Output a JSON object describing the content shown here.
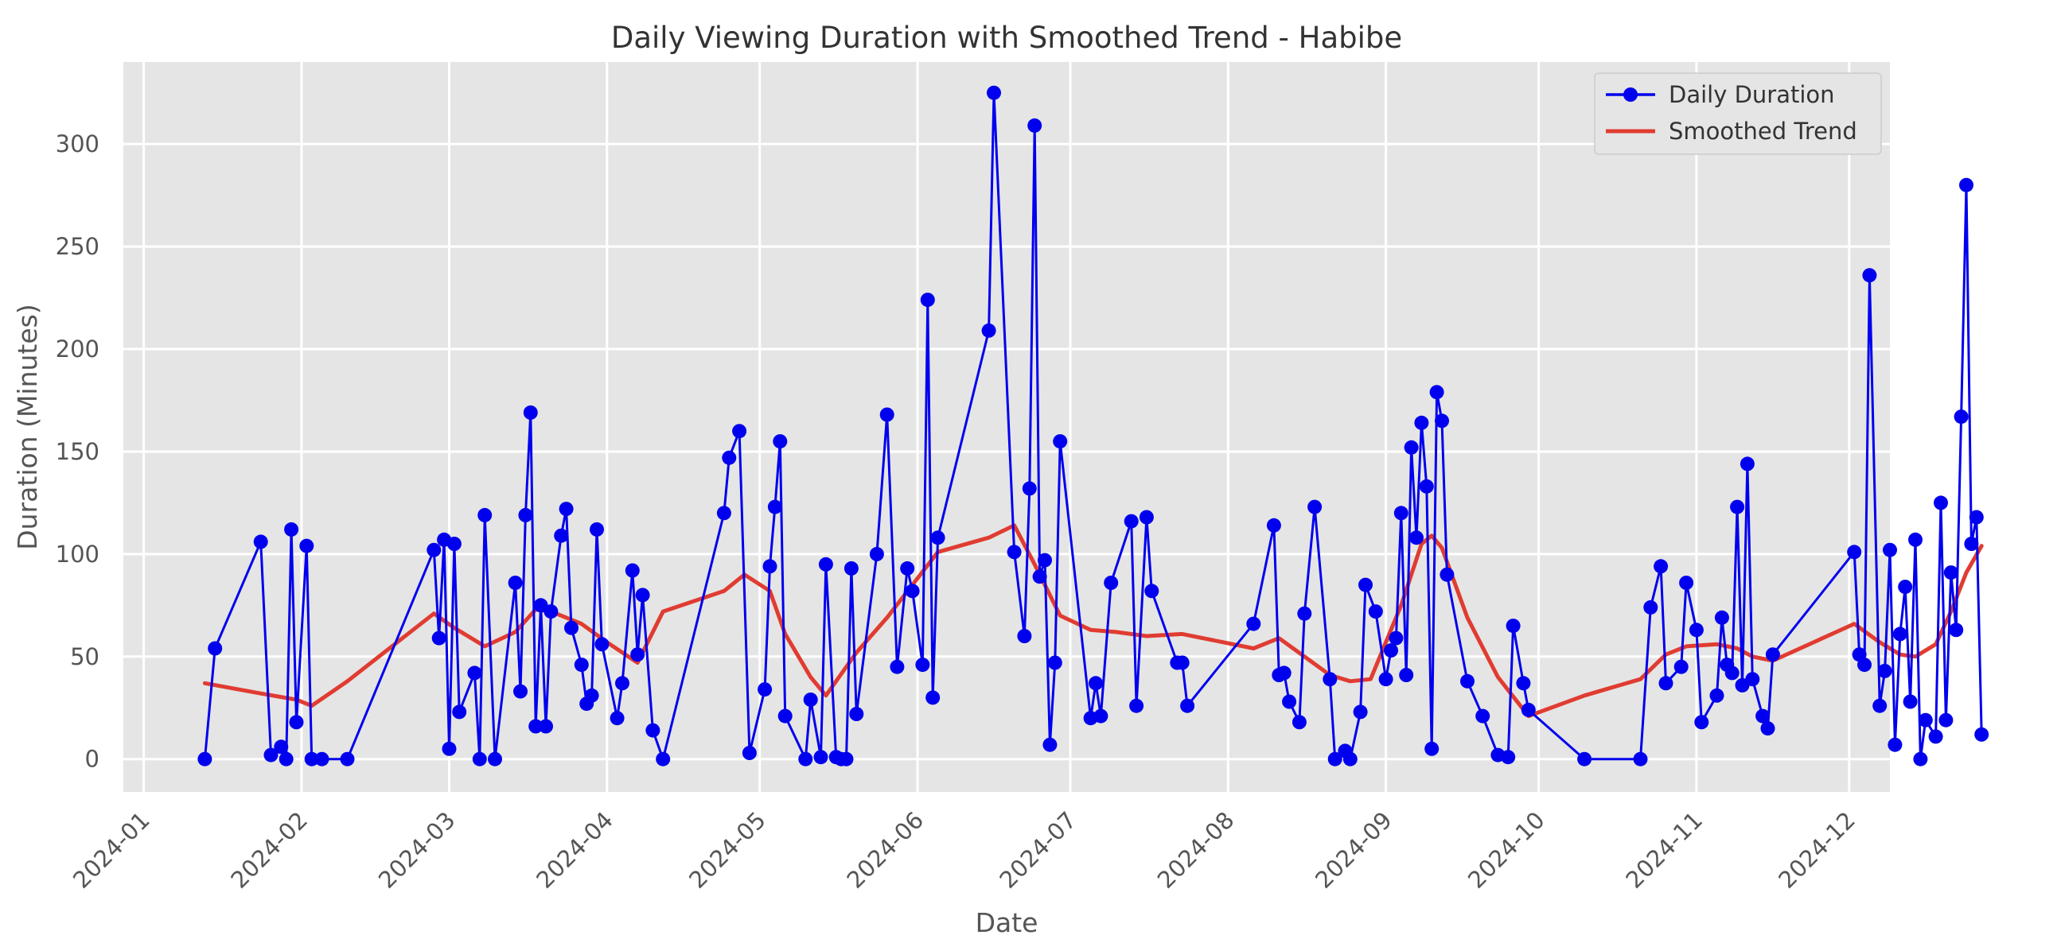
{
  "chart_data": {
    "type": "line",
    "title": "Daily Viewing Duration with Smoothed Trend - Habibe",
    "xlabel": "Date",
    "ylabel": "Duration (Minutes)",
    "x_range": [
      "2023-12-28",
      "2024-12-09"
    ],
    "ylim": [
      -16,
      340
    ],
    "grid": true,
    "legend_position": "top-right",
    "x_ticks": [
      "2024-01-01",
      "2024-02-01",
      "2024-03-01",
      "2024-04-01",
      "2024-05-01",
      "2024-06-01",
      "2024-07-01",
      "2024-08-01",
      "2024-09-01",
      "2024-10-01",
      "2024-11-01",
      "2024-12-01"
    ],
    "x_tick_labels": [
      "2024-01",
      "2024-02",
      "2024-03",
      "2024-04",
      "2024-05",
      "2024-06",
      "2024-07",
      "2024-08",
      "2024-09",
      "2024-10",
      "2024-11",
      "2024-12"
    ],
    "y_ticks": [
      0,
      50,
      100,
      150,
      200,
      250,
      300
    ],
    "y_tick_labels": [
      "0",
      "50",
      "100",
      "150",
      "200",
      "250",
      "300"
    ],
    "series": [
      {
        "name": "Daily Duration",
        "color": "#0000ee",
        "marker": "circle",
        "points": [
          [
            "2024-01-13",
            0
          ],
          [
            "2024-01-15",
            54
          ],
          [
            "2024-01-24",
            106
          ],
          [
            "2024-01-26",
            2
          ],
          [
            "2024-01-28",
            6
          ],
          [
            "2024-01-29",
            0
          ],
          [
            "2024-01-30",
            112
          ],
          [
            "2024-01-31",
            18
          ],
          [
            "2024-02-02",
            104
          ],
          [
            "2024-02-03",
            0
          ],
          [
            "2024-02-05",
            0
          ],
          [
            "2024-02-10",
            0
          ],
          [
            "2024-02-27",
            102
          ],
          [
            "2024-02-28",
            59
          ],
          [
            "2024-02-29",
            107
          ],
          [
            "2024-03-01",
            5
          ],
          [
            "2024-03-02",
            105
          ],
          [
            "2024-03-03",
            23
          ],
          [
            "2024-03-06",
            42
          ],
          [
            "2024-03-07",
            0
          ],
          [
            "2024-03-08",
            119
          ],
          [
            "2024-03-10",
            0
          ],
          [
            "2024-03-14",
            86
          ],
          [
            "2024-03-15",
            33
          ],
          [
            "2024-03-16",
            119
          ],
          [
            "2024-03-17",
            169
          ],
          [
            "2024-03-18",
            16
          ],
          [
            "2024-03-19",
            75
          ],
          [
            "2024-03-20",
            16
          ],
          [
            "2024-03-21",
            72
          ],
          [
            "2024-03-23",
            109
          ],
          [
            "2024-03-24",
            122
          ],
          [
            "2024-03-25",
            64
          ],
          [
            "2024-03-27",
            46
          ],
          [
            "2024-03-28",
            27
          ],
          [
            "2024-03-29",
            31
          ],
          [
            "2024-03-30",
            112
          ],
          [
            "2024-03-31",
            56
          ],
          [
            "2024-04-03",
            20
          ],
          [
            "2024-04-04",
            37
          ],
          [
            "2024-04-06",
            92
          ],
          [
            "2024-04-07",
            51
          ],
          [
            "2024-04-08",
            80
          ],
          [
            "2024-04-10",
            14
          ],
          [
            "2024-04-12",
            0
          ],
          [
            "2024-04-24",
            120
          ],
          [
            "2024-04-25",
            147
          ],
          [
            "2024-04-27",
            160
          ],
          [
            "2024-04-29",
            3
          ],
          [
            "2024-05-02",
            34
          ],
          [
            "2024-05-03",
            94
          ],
          [
            "2024-05-04",
            123
          ],
          [
            "2024-05-05",
            155
          ],
          [
            "2024-05-06",
            21
          ],
          [
            "2024-05-10",
            0
          ],
          [
            "2024-05-11",
            29
          ],
          [
            "2024-05-13",
            1
          ],
          [
            "2024-05-14",
            95
          ],
          [
            "2024-05-16",
            1
          ],
          [
            "2024-05-17",
            0
          ],
          [
            "2024-05-18",
            0
          ],
          [
            "2024-05-19",
            93
          ],
          [
            "2024-05-20",
            22
          ],
          [
            "2024-05-24",
            100
          ],
          [
            "2024-05-26",
            168
          ],
          [
            "2024-05-28",
            45
          ],
          [
            "2024-05-30",
            93
          ],
          [
            "2024-05-31",
            82
          ],
          [
            "2024-06-02",
            46
          ],
          [
            "2024-06-03",
            224
          ],
          [
            "2024-06-04",
            30
          ],
          [
            "2024-06-05",
            108
          ],
          [
            "2024-06-15",
            209
          ],
          [
            "2024-06-16",
            325
          ],
          [
            "2024-06-20",
            101
          ],
          [
            "2024-06-22",
            60
          ],
          [
            "2024-06-23",
            132
          ],
          [
            "2024-06-24",
            309
          ],
          [
            "2024-06-25",
            89
          ],
          [
            "2024-06-26",
            97
          ],
          [
            "2024-06-27",
            7
          ],
          [
            "2024-06-28",
            47
          ],
          [
            "2024-06-29",
            155
          ],
          [
            "2024-07-05",
            20
          ],
          [
            "2024-07-06",
            37
          ],
          [
            "2024-07-07",
            21
          ],
          [
            "2024-07-09",
            86
          ],
          [
            "2024-07-13",
            116
          ],
          [
            "2024-07-14",
            26
          ],
          [
            "2024-07-16",
            118
          ],
          [
            "2024-07-17",
            82
          ],
          [
            "2024-07-22",
            47
          ],
          [
            "2024-07-23",
            47
          ],
          [
            "2024-07-24",
            26
          ],
          [
            "2024-08-06",
            66
          ],
          [
            "2024-08-10",
            114
          ],
          [
            "2024-08-11",
            41
          ],
          [
            "2024-08-12",
            42
          ],
          [
            "2024-08-13",
            28
          ],
          [
            "2024-08-15",
            18
          ],
          [
            "2024-08-16",
            71
          ],
          [
            "2024-08-18",
            123
          ],
          [
            "2024-08-21",
            39
          ],
          [
            "2024-08-22",
            0
          ],
          [
            "2024-08-24",
            4
          ],
          [
            "2024-08-25",
            0
          ],
          [
            "2024-08-27",
            23
          ],
          [
            "2024-08-28",
            85
          ],
          [
            "2024-08-30",
            72
          ],
          [
            "2024-09-01",
            39
          ],
          [
            "2024-09-02",
            53
          ],
          [
            "2024-09-03",
            59
          ],
          [
            "2024-09-04",
            120
          ],
          [
            "2024-09-05",
            41
          ],
          [
            "2024-09-06",
            152
          ],
          [
            "2024-09-07",
            108
          ],
          [
            "2024-09-08",
            164
          ],
          [
            "2024-09-09",
            133
          ],
          [
            "2024-09-10",
            5
          ],
          [
            "2024-09-11",
            179
          ],
          [
            "2024-09-12",
            165
          ],
          [
            "2024-09-13",
            90
          ],
          [
            "2024-09-17",
            38
          ],
          [
            "2024-09-20",
            21
          ],
          [
            "2024-09-23",
            2
          ],
          [
            "2024-09-25",
            1
          ],
          [
            "2024-09-26",
            65
          ],
          [
            "2024-09-28",
            37
          ],
          [
            "2024-09-29",
            24
          ],
          [
            "2024-10-10",
            0
          ],
          [
            "2024-10-21",
            0
          ],
          [
            "2024-10-23",
            74
          ],
          [
            "2024-10-25",
            94
          ],
          [
            "2024-10-26",
            37
          ],
          [
            "2024-10-29",
            45
          ],
          [
            "2024-10-30",
            86
          ],
          [
            "2024-11-01",
            63
          ],
          [
            "2024-11-02",
            18
          ],
          [
            "2024-11-05",
            31
          ],
          [
            "2024-11-06",
            69
          ],
          [
            "2024-11-07",
            46
          ],
          [
            "2024-11-08",
            42
          ],
          [
            "2024-11-09",
            123
          ],
          [
            "2024-11-10",
            36
          ],
          [
            "2024-11-11",
            144
          ],
          [
            "2024-11-12",
            39
          ],
          [
            "2024-11-14",
            21
          ],
          [
            "2024-11-15",
            15
          ],
          [
            "2024-11-16",
            51
          ],
          [
            "2024-12-02",
            101
          ],
          [
            "2024-12-03",
            51
          ],
          [
            "2024-12-04",
            46
          ],
          [
            "2024-12-05",
            236
          ],
          [
            "2024-12-07",
            26
          ],
          [
            "2024-12-08",
            43
          ],
          [
            "2024-12-09",
            102
          ],
          [
            "2024-12-10",
            7
          ],
          [
            "2024-12-11",
            61
          ],
          [
            "2024-12-12",
            84
          ],
          [
            "2024-12-13",
            28
          ],
          [
            "2024-12-14",
            107
          ],
          [
            "2024-12-15",
            0
          ],
          [
            "2024-12-16",
            19
          ],
          [
            "2024-12-18",
            11
          ],
          [
            "2024-12-19",
            125
          ],
          [
            "2024-12-20",
            19
          ],
          [
            "2024-12-21",
            91
          ],
          [
            "2024-12-22",
            63
          ],
          [
            "2024-12-23",
            167
          ],
          [
            "2024-12-24",
            280
          ],
          [
            "2024-12-25",
            105
          ],
          [
            "2024-12-26",
            118
          ],
          [
            "2024-12-27",
            12
          ]
        ]
      },
      {
        "name": "Smoothed Trend",
        "color": "#e03c31",
        "points": [
          [
            "2024-01-13",
            37
          ],
          [
            "2024-01-24",
            32
          ],
          [
            "2024-01-31",
            29
          ],
          [
            "2024-02-03",
            26
          ],
          [
            "2024-02-10",
            38
          ],
          [
            "2024-02-27",
            71
          ],
          [
            "2024-03-02",
            64
          ],
          [
            "2024-03-08",
            55
          ],
          [
            "2024-03-14",
            62
          ],
          [
            "2024-03-18",
            73
          ],
          [
            "2024-03-21",
            72
          ],
          [
            "2024-03-27",
            66
          ],
          [
            "2024-04-01",
            57
          ],
          [
            "2024-04-07",
            47
          ],
          [
            "2024-04-12",
            72
          ],
          [
            "2024-04-24",
            82
          ],
          [
            "2024-04-28",
            90
          ],
          [
            "2024-05-03",
            82
          ],
          [
            "2024-05-06",
            61
          ],
          [
            "2024-05-11",
            40
          ],
          [
            "2024-05-14",
            31
          ],
          [
            "2024-05-20",
            52
          ],
          [
            "2024-05-26",
            69
          ],
          [
            "2024-05-31",
            85
          ],
          [
            "2024-06-05",
            101
          ],
          [
            "2024-06-15",
            108
          ],
          [
            "2024-06-20",
            114
          ],
          [
            "2024-06-24",
            95
          ],
          [
            "2024-06-29",
            70
          ],
          [
            "2024-07-05",
            63
          ],
          [
            "2024-07-10",
            62
          ],
          [
            "2024-07-16",
            60
          ],
          [
            "2024-07-23",
            61
          ],
          [
            "2024-08-06",
            54
          ],
          [
            "2024-08-11",
            59
          ],
          [
            "2024-08-16",
            50
          ],
          [
            "2024-08-21",
            41
          ],
          [
            "2024-08-25",
            38
          ],
          [
            "2024-08-29",
            39
          ],
          [
            "2024-09-04",
            75
          ],
          [
            "2024-09-08",
            105
          ],
          [
            "2024-09-10",
            109
          ],
          [
            "2024-09-12",
            103
          ],
          [
            "2024-09-17",
            69
          ],
          [
            "2024-09-23",
            40
          ],
          [
            "2024-09-29",
            21
          ],
          [
            "2024-10-10",
            31
          ],
          [
            "2024-10-21",
            39
          ],
          [
            "2024-10-26",
            51
          ],
          [
            "2024-10-30",
            55
          ],
          [
            "2024-11-05",
            56
          ],
          [
            "2024-11-09",
            54
          ],
          [
            "2024-11-12",
            50
          ],
          [
            "2024-11-16",
            48
          ],
          [
            "2024-12-02",
            66
          ],
          [
            "2024-12-07",
            57
          ],
          [
            "2024-12-11",
            51
          ],
          [
            "2024-12-14",
            50
          ],
          [
            "2024-12-18",
            56
          ],
          [
            "2024-12-21",
            72
          ],
          [
            "2024-12-24",
            91
          ],
          [
            "2024-12-27",
            104
          ]
        ]
      }
    ]
  }
}
